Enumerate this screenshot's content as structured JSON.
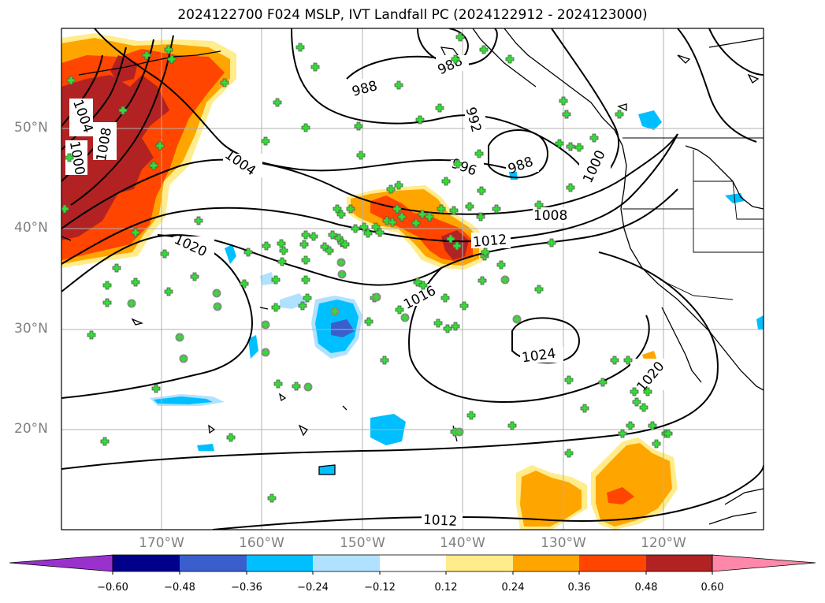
{
  "title": "2024122700 F024 MSLP, IVT Landfall PC (2024122912 - 2024123000)",
  "map": {
    "lat_labels": [
      "50°N",
      "40°N",
      "30°N",
      "20°N"
    ],
    "lon_labels": [
      "170°W",
      "160°W",
      "150°W",
      "140°W",
      "130°W",
      "120°W"
    ],
    "isobar_labels": [
      "988",
      "988",
      "992",
      "996",
      "988",
      "1000",
      "1004",
      "1008",
      "1004",
      "1000",
      "1008",
      "1012",
      "1016",
      "1020",
      "1024",
      "1020",
      "1012"
    ],
    "contour_color": "#000000",
    "marker_cross_color": "#33dd33",
    "marker_circle_color": "#33dd33"
  },
  "colorbar": {
    "ticks": [
      "−0.60",
      "−0.48",
      "−0.36",
      "−0.24",
      "−0.12",
      "0.12",
      "0.24",
      "0.36",
      "0.48",
      "0.60"
    ],
    "colors": [
      "#9932cc",
      "#00008b",
      "#3a5fcd",
      "#00bfff",
      "#b0e2ff",
      "#ffffff",
      "#ffec8b",
      "#ffa500",
      "#ff4500",
      "#b22222",
      "#ff88aa"
    ]
  }
}
